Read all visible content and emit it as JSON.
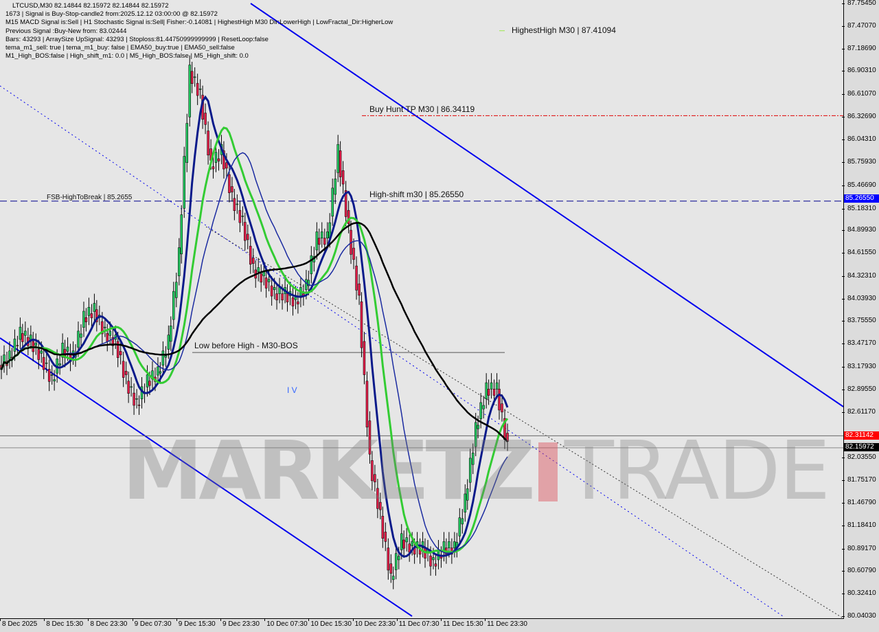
{
  "header": {
    "lines": [
      "LTCUSD,M30  82.14844 82.15972 82.14844 82.15972",
      "1673 | Signal is Buy-Stop-candle2 from:2025.12.12 03:00:00 @ 82.15972",
      "M15 MACD Signal is:Sell | H1 Stochastic Signal is:Sell| Fisher:-0.14081 | HighestHigh M30 Dir:LowerHigh | LowFractal_Dir:HigherLow",
      "Previous Signal :Buy-New from: 83.02444",
      "Bars: 43293 | ArraySize UpSignal: 43293 | Stoploss:81.44750999999999 | ResetLoop:false",
      "tema_m1_sell: true | tema_m1_buy: false | EMA50_buy:true | EMA50_sell:false",
      "M1_High_BOS:false | High_shift_m1: 0.0 | M5_High_BOS:false | M5_High_shift: 0.0"
    ]
  },
  "chart_data": {
    "type": "candlestick",
    "symbol": "LTCUSD",
    "timeframe": "M30",
    "ylim": [
      80.0403,
      87.7545
    ],
    "y_ticks": [
      "87.75450",
      "87.47070",
      "87.18690",
      "86.90310",
      "86.61070",
      "86.32690",
      "86.04310",
      "85.75930",
      "85.46690",
      "85.18310",
      "84.89930",
      "84.61550",
      "84.32310",
      "84.03930",
      "83.75550",
      "83.47170",
      "83.17930",
      "82.89550",
      "82.61170",
      "82.03550",
      "81.75170",
      "81.46790",
      "81.18410",
      "80.89170",
      "80.60790",
      "80.32410",
      "80.04030"
    ],
    "x_ticks": [
      "8 Dec 2025",
      "8 Dec 15:30",
      "8 Dec 23:30",
      "9 Dec 07:30",
      "9 Dec 15:30",
      "9 Dec 23:30",
      "10 Dec 07:30",
      "10 Dec 15:30",
      "10 Dec 23:30",
      "11 Dec 07:30",
      "11 Dec 15:30",
      "11 Dec 23:30"
    ],
    "closes_approx_2h": [
      83.3,
      83.6,
      83.5,
      83.3,
      83.0,
      83.4,
      83.3,
      83.8,
      83.9,
      83.6,
      83.5,
      83.0,
      82.7,
      83.0,
      83.1,
      83.5,
      84.6,
      86.9,
      86.6,
      85.7,
      85.9,
      85.3,
      85.0,
      84.4,
      84.3,
      84.1,
      84.1,
      84.0,
      84.2,
      84.8,
      84.8,
      85.9,
      84.9,
      84.0,
      82.0,
      81.3,
      80.5,
      81.0,
      80.9,
      80.9,
      80.7,
      80.9,
      80.9,
      81.5,
      82.4,
      82.9,
      82.9,
      82.16
    ],
    "levels": [
      {
        "label": "HighestHigh M30 | 87.41094",
        "price": 87.41094,
        "color": "#9be84a"
      },
      {
        "label": "Buy Hunt TP M30 | 86.34119",
        "price": 86.34119,
        "color": "#e00000"
      },
      {
        "label": "High-shift m30 | 85.26550",
        "price": 85.2655,
        "color": "#00008b"
      },
      {
        "label": "FSB-HighToBreak | 85.2655",
        "price": 85.2655,
        "color": "#00008b"
      },
      {
        "label": "Low before High - M30-BOS",
        "price": 83.36,
        "color": "#555555"
      }
    ],
    "badges": {
      "level": {
        "value": "85.26550",
        "color": "#0000ff"
      },
      "ask": {
        "value": "82.31142",
        "color": "#ff0000"
      },
      "bid": {
        "value": "82.15972",
        "color": "#000000"
      }
    },
    "misc_label": "I V"
  },
  "watermark": {
    "part1": "MARKETZ",
    "part2": "TRADE"
  }
}
